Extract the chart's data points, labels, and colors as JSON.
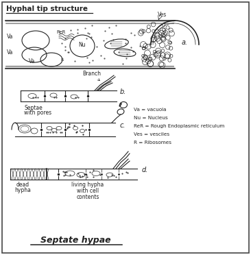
{
  "title_top": "Hyphal tip structure",
  "title_bottom": "Septate hypae",
  "legend_lines": [
    "Va = vacuola",
    "Nu = Nucleus",
    "ReR = Rough Endoplasmic reticulum",
    "Ves = vesciles",
    "R = Ribosomes"
  ],
  "bg_color": "#ffffff",
  "draw_color": "#222222"
}
